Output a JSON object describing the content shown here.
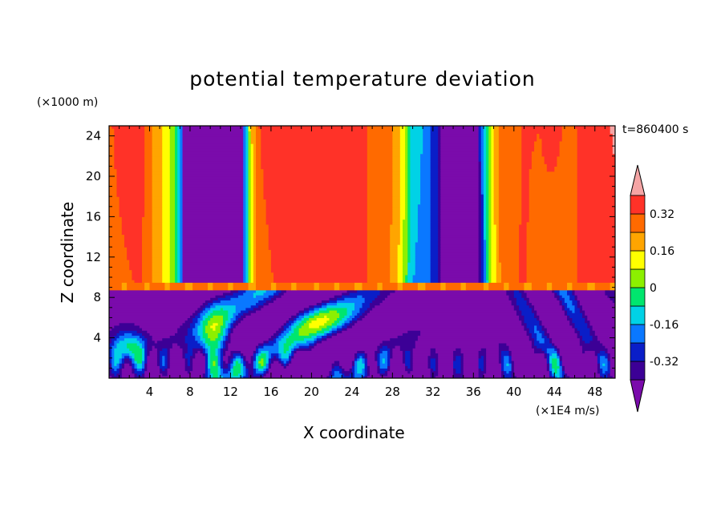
{
  "chart_data": {
    "type": "heatmap",
    "title": "potential temperature deviation",
    "xlabel": "X coordinate",
    "ylabel": "Z coordinate",
    "x_units": "(×1E4 m/s)",
    "y_units": "(×1000 m)",
    "time_label": "t=860400 s",
    "xlim": [
      0,
      50
    ],
    "ylim": [
      0,
      25
    ],
    "x_ticks": [
      4,
      8,
      12,
      16,
      20,
      24,
      28,
      32,
      36,
      40,
      44,
      48
    ],
    "y_ticks": [
      4,
      8,
      12,
      16,
      20,
      24
    ],
    "colorbar": {
      "levels": [
        -0.4,
        -0.32,
        -0.24,
        -0.16,
        -0.08,
        0,
        0.08,
        0.16,
        0.24,
        0.32,
        0.4
      ],
      "labels": [
        "-0.32",
        "-0.16",
        "0",
        "0.16",
        "0.32"
      ],
      "label_values": [
        -0.32,
        -0.16,
        0,
        0.16,
        0.32
      ],
      "colors": [
        "#7a0bab",
        "#3c0096",
        "#0a1ec8",
        "#0a78ff",
        "#00d2e6",
        "#00e66e",
        "#8cf000",
        "#ffff00",
        "#ffa500",
        "#ff6a00",
        "#ff3228",
        "#f5a5a5"
      ]
    },
    "field_description": "upper layer (z>9): vertical bands varying with x; lower layer (z<9): turbulent wave structures"
  }
}
